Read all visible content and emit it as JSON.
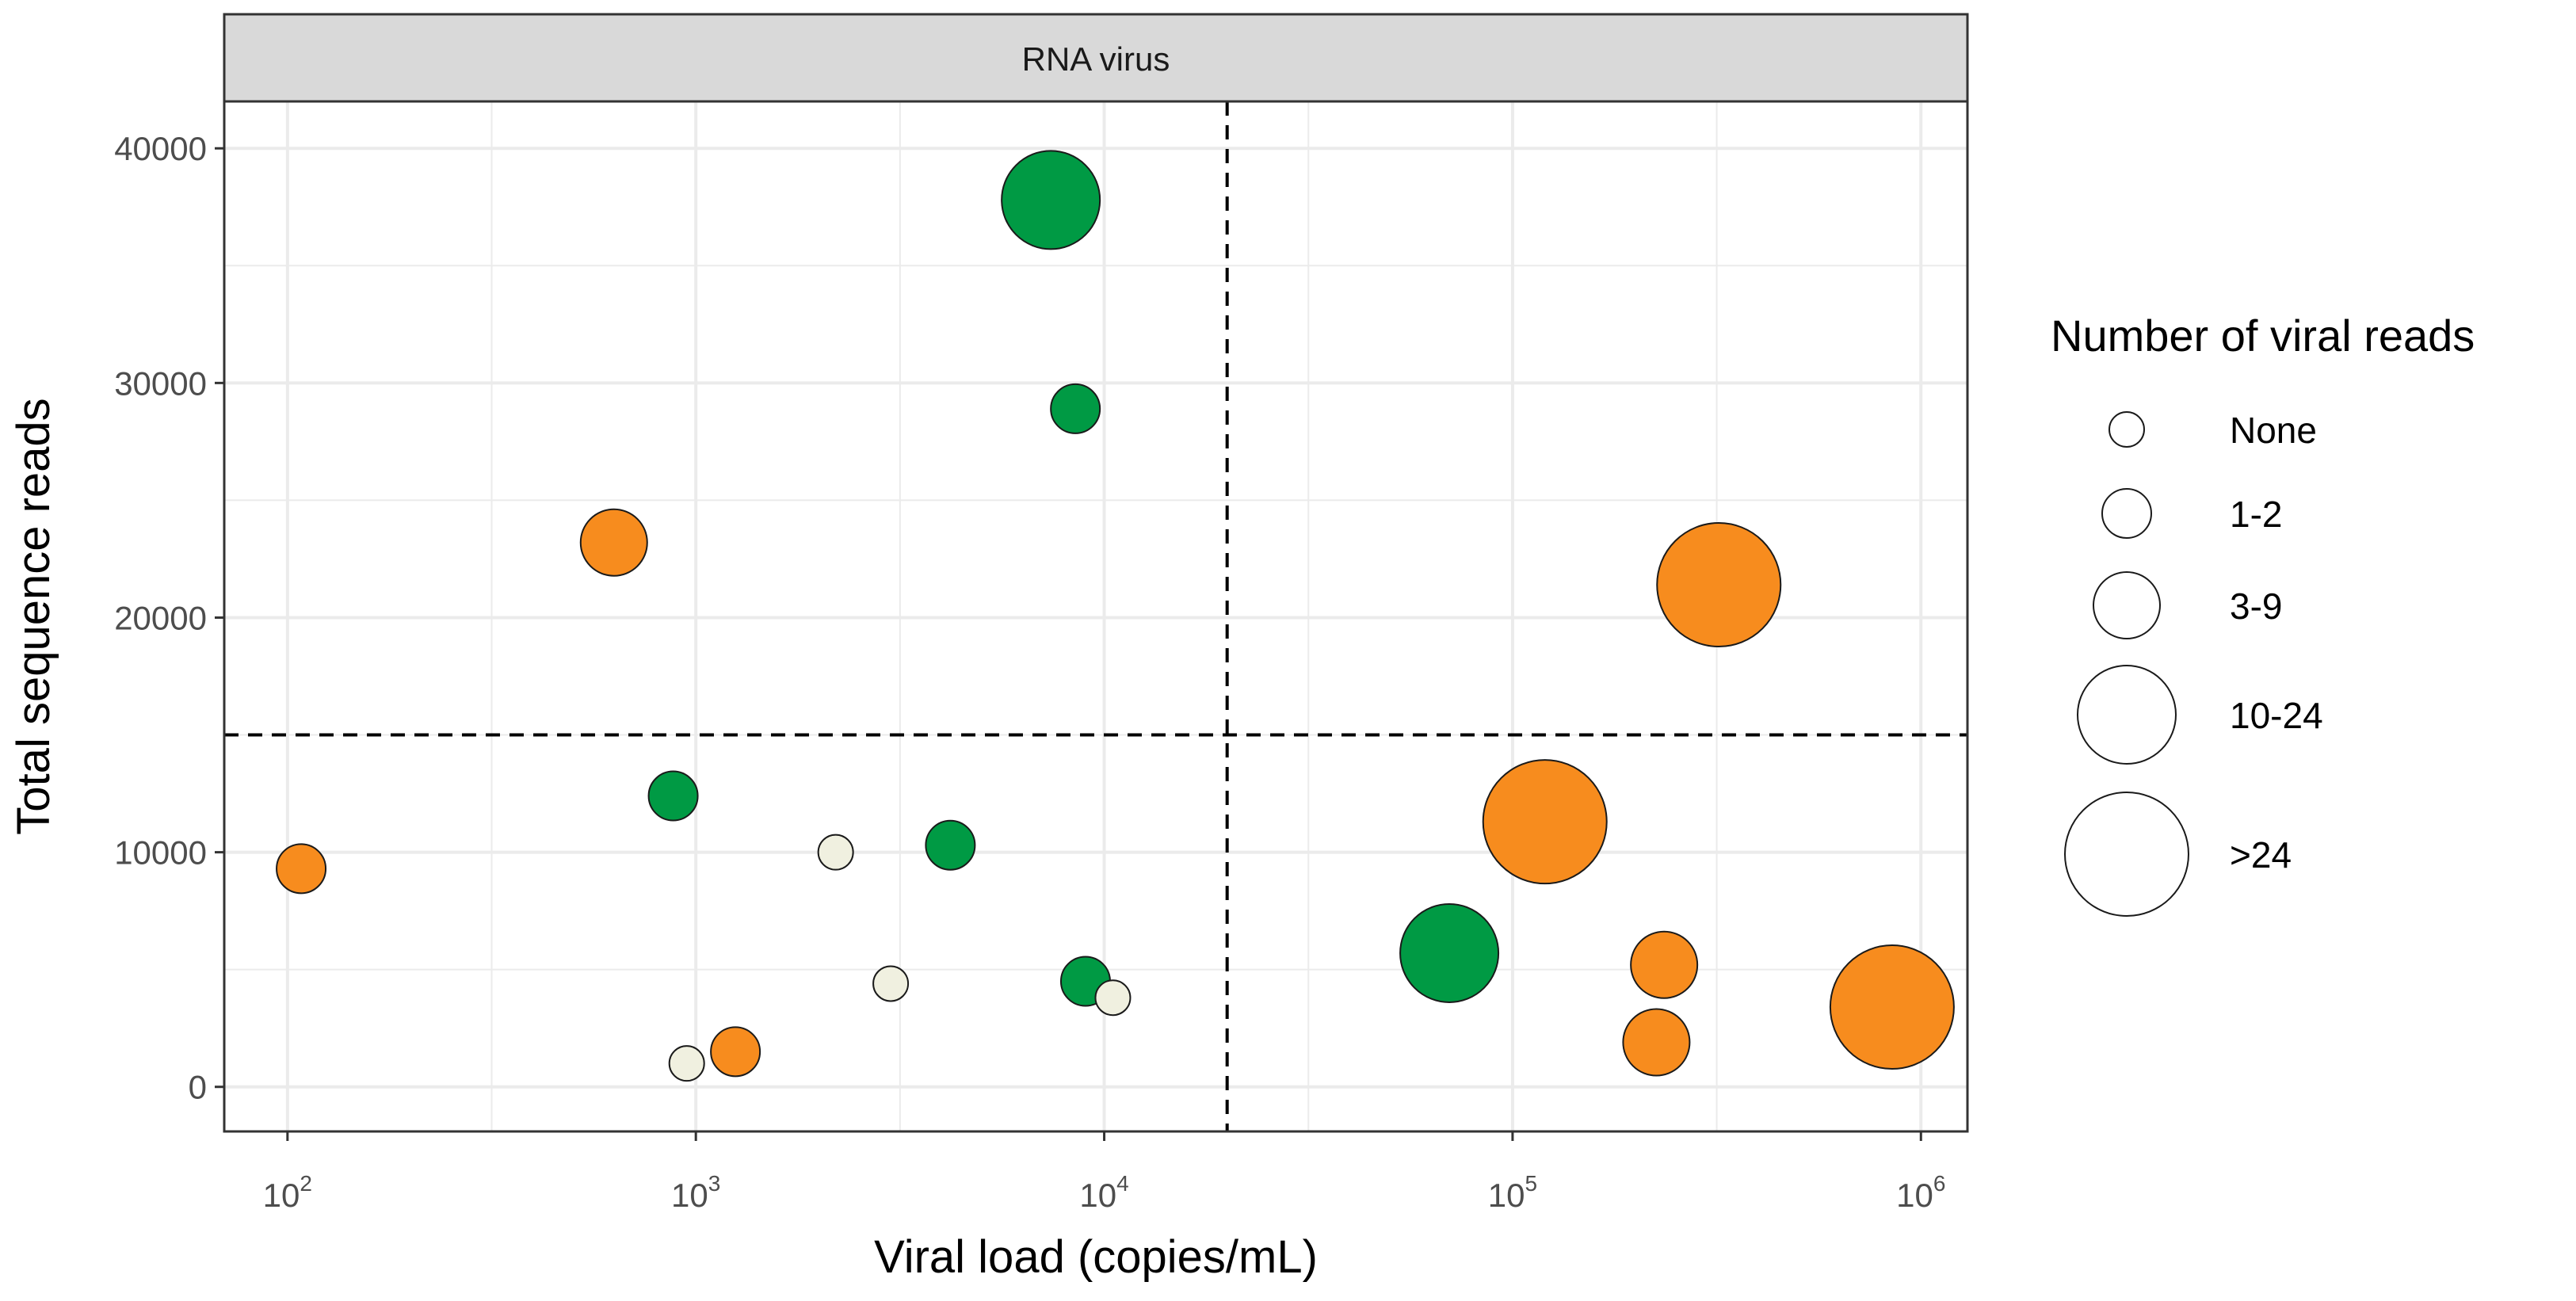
{
  "chart_data": {
    "type": "scatter",
    "facet_label": "RNA virus",
    "xlabel": "Viral load (copies/mL)",
    "ylabel": "Total sequence reads",
    "x_scale": "log10",
    "xlim": [
      70,
      1300000
    ],
    "ylim": [
      -1900,
      42000
    ],
    "x_ticks": [
      {
        "value": 100,
        "base": "10",
        "exp": "2"
      },
      {
        "value": 1000,
        "base": "10",
        "exp": "3"
      },
      {
        "value": 10000,
        "base": "10",
        "exp": "4"
      },
      {
        "value": 100000,
        "base": "10",
        "exp": "5"
      },
      {
        "value": 1000000,
        "base": "10",
        "exp": "6"
      }
    ],
    "y_ticks": [
      "0",
      "10000",
      "20000",
      "30000",
      "40000"
    ],
    "y_tick_values": [
      0,
      10000,
      20000,
      30000,
      40000
    ],
    "reference_lines": {
      "x": 20000,
      "y": 15000
    },
    "colors": {
      "green": "#009a44",
      "orange": "#f78c1e",
      "none": "#f0f0e0",
      "grid": "#ebebeb",
      "strip": "#d9d9d9"
    },
    "legend": {
      "title": "Number of viral reads",
      "items": [
        {
          "label": "None",
          "level": 0
        },
        {
          "label": "1-2",
          "level": 1
        },
        {
          "label": "3-9",
          "level": 2
        },
        {
          "label": "10-24",
          "level": 3
        },
        {
          "label": ">24",
          "level": 4
        }
      ]
    },
    "points": [
      {
        "x": 108,
        "y": 9300,
        "size_level": 1,
        "color": "orange"
      },
      {
        "x": 630,
        "y": 23200,
        "size_level": 2,
        "color": "orange"
      },
      {
        "x": 880,
        "y": 12400,
        "size_level": 1,
        "color": "green"
      },
      {
        "x": 950,
        "y": 1000,
        "size_level": 0,
        "color": "none"
      },
      {
        "x": 1250,
        "y": 1500,
        "size_level": 1,
        "color": "orange"
      },
      {
        "x": 2200,
        "y": 10000,
        "size_level": 0,
        "color": "none"
      },
      {
        "x": 3000,
        "y": 4400,
        "size_level": 0,
        "color": "none"
      },
      {
        "x": 4200,
        "y": 10300,
        "size_level": 1,
        "color": "green"
      },
      {
        "x": 7400,
        "y": 37800,
        "size_level": 3,
        "color": "green"
      },
      {
        "x": 8500,
        "y": 28900,
        "size_level": 1,
        "color": "green"
      },
      {
        "x": 9000,
        "y": 4500,
        "size_level": 1,
        "color": "green"
      },
      {
        "x": 10500,
        "y": 3800,
        "size_level": 0,
        "color": "none"
      },
      {
        "x": 70000,
        "y": 5700,
        "size_level": 3,
        "color": "green"
      },
      {
        "x": 120000,
        "y": 11300,
        "size_level": 4,
        "color": "orange"
      },
      {
        "x": 225000,
        "y": 1900,
        "size_level": 2,
        "color": "orange"
      },
      {
        "x": 235000,
        "y": 5200,
        "size_level": 2,
        "color": "orange"
      },
      {
        "x": 320000,
        "y": 21400,
        "size_level": 4,
        "color": "orange"
      },
      {
        "x": 850000,
        "y": 3400,
        "size_level": 4,
        "color": "orange"
      }
    ]
  }
}
